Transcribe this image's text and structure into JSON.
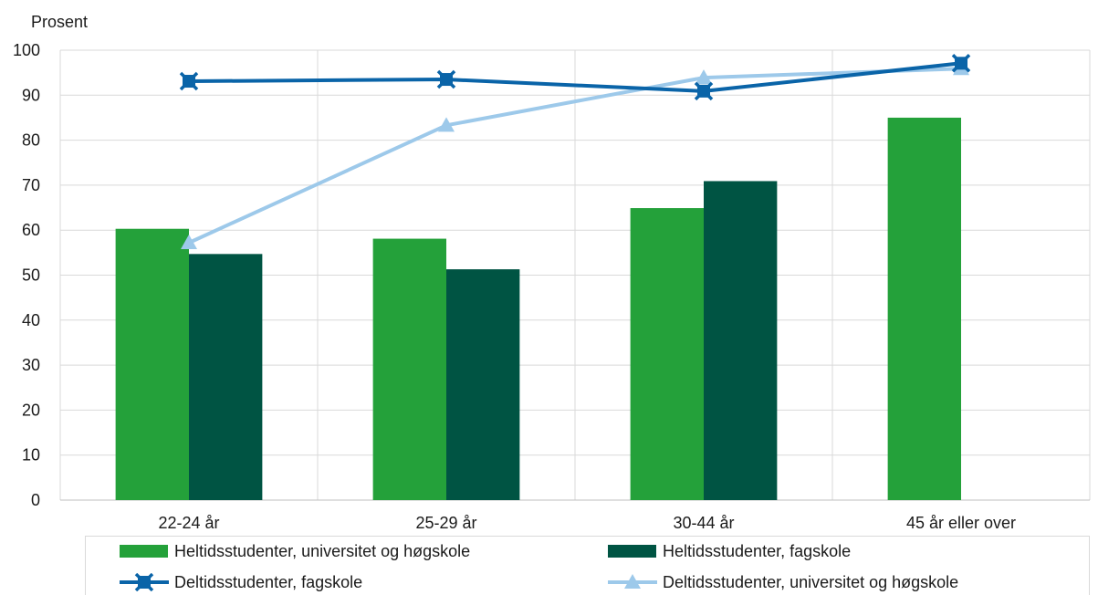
{
  "chart_data": {
    "type": "bar",
    "ylabel": "Prosent",
    "ylim": [
      0,
      100
    ],
    "yticks": [
      0,
      10,
      20,
      30,
      40,
      50,
      60,
      70,
      80,
      90,
      100
    ],
    "grid": true,
    "legend_position": "bottom",
    "categories": [
      "22-24 år",
      "25-29 år",
      "30-44 år",
      "45 år eller over"
    ],
    "series": [
      {
        "name": "Heltidsstudenter, universitet og høgskole",
        "kind": "bar",
        "color": "#24a13a",
        "values": [
          60.3,
          58.1,
          64.9,
          85.0
        ]
      },
      {
        "name": "Heltidsstudenter, fagskole",
        "kind": "bar",
        "color": "#005443",
        "values": [
          54.7,
          51.3,
          70.9,
          null
        ]
      },
      {
        "name": "Deltidsstudenter, fagskole",
        "kind": "line",
        "marker": "x-square",
        "color": "#0a64a8",
        "values": [
          93.1,
          93.5,
          90.9,
          97.1
        ]
      },
      {
        "name": "Deltidsstudenter, universitet og høgskole",
        "kind": "line",
        "marker": "triangle",
        "color": "#9dc9ea",
        "values": [
          57.2,
          83.3,
          93.9,
          95.9
        ]
      }
    ]
  }
}
